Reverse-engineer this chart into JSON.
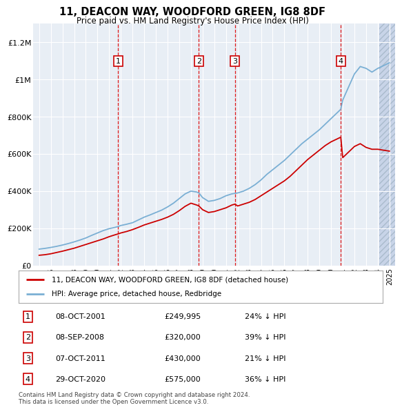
{
  "title": "11, DEACON WAY, WOODFORD GREEN, IG8 8DF",
  "subtitle": "Price paid vs. HM Land Registry's House Price Index (HPI)",
  "footnote": "Contains HM Land Registry data © Crown copyright and database right 2024.\nThis data is licensed under the Open Government Licence v3.0.",
  "legend_label_red": "11, DEACON WAY, WOODFORD GREEN, IG8 8DF (detached house)",
  "legend_label_blue": "HPI: Average price, detached house, Redbridge",
  "table": [
    {
      "num": 1,
      "date": "08-OCT-2001",
      "price": "£249,995",
      "pct": "24% ↓ HPI"
    },
    {
      "num": 2,
      "date": "08-SEP-2008",
      "price": "£320,000",
      "pct": "39% ↓ HPI"
    },
    {
      "num": 3,
      "date": "07-OCT-2011",
      "price": "£430,000",
      "pct": "21% ↓ HPI"
    },
    {
      "num": 4,
      "date": "29-OCT-2020",
      "price": "£575,000",
      "pct": "36% ↓ HPI"
    }
  ],
  "purchases": [
    {
      "year": 2001.77,
      "price": 249995,
      "label": 1
    },
    {
      "year": 2008.68,
      "price": 320000,
      "label": 2
    },
    {
      "year": 2011.77,
      "price": 430000,
      "label": 3
    },
    {
      "year": 2020.83,
      "price": 575000,
      "label": 4
    }
  ],
  "vlines": [
    2001.77,
    2008.68,
    2011.77,
    2020.83
  ],
  "hpi_years": [
    1995.0,
    1995.5,
    1996.0,
    1996.5,
    1997.0,
    1997.5,
    1998.0,
    1998.5,
    1999.0,
    1999.5,
    2000.0,
    2000.5,
    2001.0,
    2001.5,
    2001.77,
    2002.0,
    2002.5,
    2003.0,
    2003.5,
    2004.0,
    2004.5,
    2005.0,
    2005.5,
    2006.0,
    2006.5,
    2007.0,
    2007.5,
    2008.0,
    2008.5,
    2008.68,
    2009.0,
    2009.5,
    2010.0,
    2010.5,
    2011.0,
    2011.5,
    2011.77,
    2012.0,
    2012.5,
    2013.0,
    2013.5,
    2014.0,
    2014.5,
    2015.0,
    2015.5,
    2016.0,
    2016.5,
    2017.0,
    2017.5,
    2018.0,
    2018.5,
    2019.0,
    2019.5,
    2020.0,
    2020.5,
    2020.83,
    2021.0,
    2021.5,
    2022.0,
    2022.5,
    2023.0,
    2023.5,
    2024.0,
    2024.5,
    2025.0
  ],
  "hpi_values": [
    88000,
    92000,
    97000,
    103000,
    110000,
    118000,
    127000,
    137000,
    148000,
    162000,
    175000,
    188000,
    198000,
    205000,
    210000,
    215000,
    222000,
    230000,
    245000,
    260000,
    272000,
    285000,
    298000,
    315000,
    335000,
    360000,
    385000,
    400000,
    395000,
    390000,
    365000,
    345000,
    350000,
    360000,
    375000,
    385000,
    388000,
    390000,
    400000,
    415000,
    435000,
    460000,
    490000,
    515000,
    540000,
    565000,
    595000,
    625000,
    655000,
    680000,
    705000,
    730000,
    760000,
    790000,
    820000,
    840000,
    890000,
    960000,
    1030000,
    1070000,
    1060000,
    1040000,
    1060000,
    1075000,
    1090000
  ],
  "red_years": [
    1995.0,
    1995.5,
    1996.0,
    1996.5,
    1997.0,
    1997.5,
    1998.0,
    1998.5,
    1999.0,
    1999.5,
    2000.0,
    2000.5,
    2001.0,
    2001.5,
    2001.77,
    2002.0,
    2002.5,
    2003.0,
    2003.5,
    2004.0,
    2004.5,
    2005.0,
    2005.5,
    2006.0,
    2006.5,
    2007.0,
    2007.5,
    2008.0,
    2008.5,
    2008.68,
    2009.0,
    2009.5,
    2010.0,
    2010.5,
    2011.0,
    2011.5,
    2011.77,
    2012.0,
    2012.5,
    2013.0,
    2013.5,
    2014.0,
    2014.5,
    2015.0,
    2015.5,
    2016.0,
    2016.5,
    2017.0,
    2017.5,
    2018.0,
    2018.5,
    2019.0,
    2019.5,
    2020.0,
    2020.5,
    2020.83,
    2021.0,
    2021.5,
    2022.0,
    2022.5,
    2023.0,
    2023.5,
    2024.0,
    2024.5,
    2025.0
  ],
  "red_values": [
    55000,
    58000,
    63000,
    70000,
    77000,
    85000,
    93000,
    103000,
    113000,
    123000,
    133000,
    143000,
    155000,
    165000,
    170000,
    175000,
    183000,
    193000,
    205000,
    218000,
    228000,
    238000,
    248000,
    260000,
    275000,
    295000,
    318000,
    335000,
    325000,
    320000,
    300000,
    285000,
    290000,
    300000,
    310000,
    325000,
    330000,
    320000,
    330000,
    340000,
    355000,
    375000,
    395000,
    415000,
    435000,
    455000,
    480000,
    510000,
    540000,
    570000,
    595000,
    620000,
    645000,
    665000,
    680000,
    690000,
    580000,
    610000,
    640000,
    655000,
    635000,
    625000,
    625000,
    620000,
    615000
  ],
  "xlim": [
    1994.5,
    2025.5
  ],
  "ylim": [
    0,
    1300000
  ],
  "yticks": [
    0,
    200000,
    400000,
    600000,
    800000,
    1000000,
    1200000
  ],
  "ytick_labels": [
    "£0",
    "£200K",
    "£400K",
    "£600K",
    "£800K",
    "£1M",
    "£1.2M"
  ],
  "xticks": [
    1995,
    1996,
    1997,
    1998,
    1999,
    2000,
    2001,
    2002,
    2003,
    2004,
    2005,
    2006,
    2007,
    2008,
    2009,
    2010,
    2011,
    2012,
    2013,
    2014,
    2015,
    2016,
    2017,
    2018,
    2019,
    2020,
    2021,
    2022,
    2023,
    2024,
    2025
  ],
  "bg_color": "#e8eef5",
  "hatch_color": "#c8d4e8",
  "grid_color": "#ffffff",
  "red_color": "#cc0000",
  "blue_color": "#7aafd4"
}
